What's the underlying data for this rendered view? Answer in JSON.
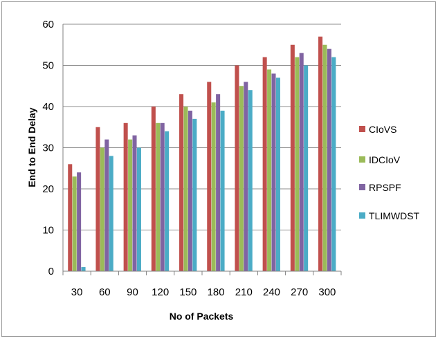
{
  "chart_data": {
    "type": "bar",
    "title": "",
    "xlabel": "No of Packets",
    "ylabel": "End to End Delay",
    "categories": [
      "30",
      "60",
      "90",
      "120",
      "150",
      "180",
      "210",
      "240",
      "270",
      "300"
    ],
    "ylim": [
      0,
      60
    ],
    "yticks": [
      "0",
      "10",
      "20",
      "30",
      "40",
      "50",
      "60"
    ],
    "grid": true,
    "legend_position": "right",
    "series": [
      {
        "name": "CIoVS",
        "color": "#c0504d",
        "values": [
          26,
          35,
          36,
          40,
          43,
          46,
          50,
          52,
          55,
          57
        ]
      },
      {
        "name": "IDCIoV",
        "color": "#9bbb59",
        "values": [
          23,
          30,
          32,
          36,
          40,
          41,
          45,
          49,
          52,
          55
        ]
      },
      {
        "name": "RPSPF",
        "color": "#8064a2",
        "values": [
          24,
          32,
          33,
          36,
          39,
          43,
          46,
          48,
          53,
          54
        ]
      },
      {
        "name": "TLIMWDST",
        "color": "#4bacc6",
        "values": [
          1,
          28,
          30,
          34,
          37,
          39,
          44,
          47,
          50,
          52
        ]
      }
    ]
  }
}
